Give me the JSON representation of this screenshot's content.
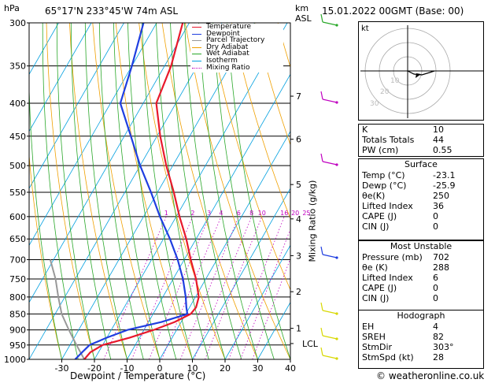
{
  "header": {
    "location": "65°17'N  233°45'W  74m  ASL",
    "datetime": "15.01.2022  00GMT  (Base: 00)",
    "hpa_unit": "hPa",
    "km_unit": "km",
    "asl_unit": "ASL"
  },
  "chart_data": {
    "type": "skew-t",
    "xlabel": "Dewpoint / Temperature (°C)",
    "ylabel_right": "Mixing Ratio (g/kg)",
    "x_ticks": [
      "-30",
      "-20",
      "-10",
      "0",
      "10",
      "20",
      "30",
      "40"
    ],
    "x_tick_values": [
      -30,
      -20,
      -10,
      0,
      10,
      20,
      30,
      40
    ],
    "xlim": [
      -40,
      40
    ],
    "pressure_levels": [
      300,
      350,
      400,
      450,
      500,
      550,
      600,
      650,
      700,
      750,
      800,
      850,
      900,
      950,
      1000
    ],
    "pressure_labels": [
      "300",
      "350",
      "400",
      "450",
      "500",
      "550",
      "600",
      "650",
      "700",
      "750",
      "800",
      "850",
      "900",
      "950",
      "1000"
    ],
    "km_ticks": [
      {
        "label": "7",
        "p": 390
      },
      {
        "label": "6",
        "p": 455
      },
      {
        "label": "5",
        "p": 535
      },
      {
        "label": "4",
        "p": 605
      },
      {
        "label": "3",
        "p": 690
      },
      {
        "label": "2",
        "p": 785
      },
      {
        "label": "1",
        "p": 895
      }
    ],
    "lcl_label": "LCL",
    "lcl_p": 945,
    "mixing_ratio_labels": [
      "1",
      "2",
      "3",
      "4",
      "6",
      "8",
      "10",
      "16",
      "20",
      "25"
    ],
    "mixing_ratio_values": [
      1,
      2,
      3,
      4,
      6,
      8,
      10,
      16,
      20,
      25
    ],
    "legend": [
      {
        "name": "Temperature",
        "color": "#e8192c"
      },
      {
        "name": "Dewpoint",
        "color": "#1f3ee0"
      },
      {
        "name": "Parcel Trajectory",
        "color": "#999999"
      },
      {
        "name": "Dry Adiabat",
        "color": "#f0a000"
      },
      {
        "name": "Wet Adiabat",
        "color": "#2aa82a"
      },
      {
        "name": "Isotherm",
        "color": "#00a0e0"
      },
      {
        "name": "Mixing Ratio",
        "color": "#c000c0"
      }
    ],
    "temperature": {
      "p": [
        1000,
        975,
        950,
        925,
        900,
        875,
        850,
        830,
        800,
        750,
        700,
        650,
        600,
        550,
        500,
        450,
        400,
        350,
        300
      ],
      "t": [
        -23.1,
        -22.5,
        -20,
        -13,
        -7,
        -2,
        1.5,
        2.0,
        1.0,
        -3,
        -8,
        -13,
        -19,
        -25,
        -32,
        -39,
        -46,
        -48,
        -52
      ]
    },
    "dewpoint": {
      "p": [
        1000,
        975,
        950,
        925,
        900,
        875,
        850,
        830,
        800,
        750,
        700,
        650,
        600,
        550,
        500,
        450,
        400,
        350,
        300
      ],
      "t": [
        -25.9,
        -25,
        -24,
        -20,
        -15,
        -6,
        0.5,
        -1,
        -3,
        -7,
        -12,
        -18,
        -25,
        -32,
        -40,
        -48,
        -57,
        -60,
        -64
      ]
    },
    "parcel": {
      "p": [
        1000,
        950,
        900,
        850,
        800,
        750,
        700
      ],
      "t": [
        -23.1,
        -28,
        -33,
        -38,
        -42,
        -46,
        -51
      ]
    }
  },
  "hodograph": {
    "label": "kt",
    "ring_labels": [
      "10",
      "20",
      "30"
    ]
  },
  "indices": [
    {
      "label": "K",
      "value": "10"
    },
    {
      "label": "Totals Totals",
      "value": "44"
    },
    {
      "label": "PW (cm)",
      "value": "0.55"
    }
  ],
  "surface": {
    "title": "Surface",
    "rows": [
      {
        "label": "Temp (°C)",
        "value": "-23.1"
      },
      {
        "label": "Dewp (°C)",
        "value": "-25.9"
      },
      {
        "label": "θe(K)",
        "value": "250"
      },
      {
        "label": "Lifted Index",
        "value": "36"
      },
      {
        "label": "CAPE (J)",
        "value": "0"
      },
      {
        "label": "CIN (J)",
        "value": "0"
      }
    ]
  },
  "most_unstable": {
    "title": "Most Unstable",
    "rows": [
      {
        "label": "Pressure (mb)",
        "value": "702"
      },
      {
        "label": "θe (K)",
        "value": "288"
      },
      {
        "label": "Lifted Index",
        "value": "6"
      },
      {
        "label": "CAPE (J)",
        "value": "0"
      },
      {
        "label": "CIN (J)",
        "value": "0"
      }
    ]
  },
  "hodograph_table": {
    "title": "Hodograph",
    "rows": [
      {
        "label": "EH",
        "value": "4"
      },
      {
        "label": "SREH",
        "value": "82"
      },
      {
        "label": "StmDir",
        "value": "303°"
      },
      {
        "label": "StmSpd (kt)",
        "value": "28"
      }
    ]
  },
  "copyright": "© weatheronline.co.uk"
}
